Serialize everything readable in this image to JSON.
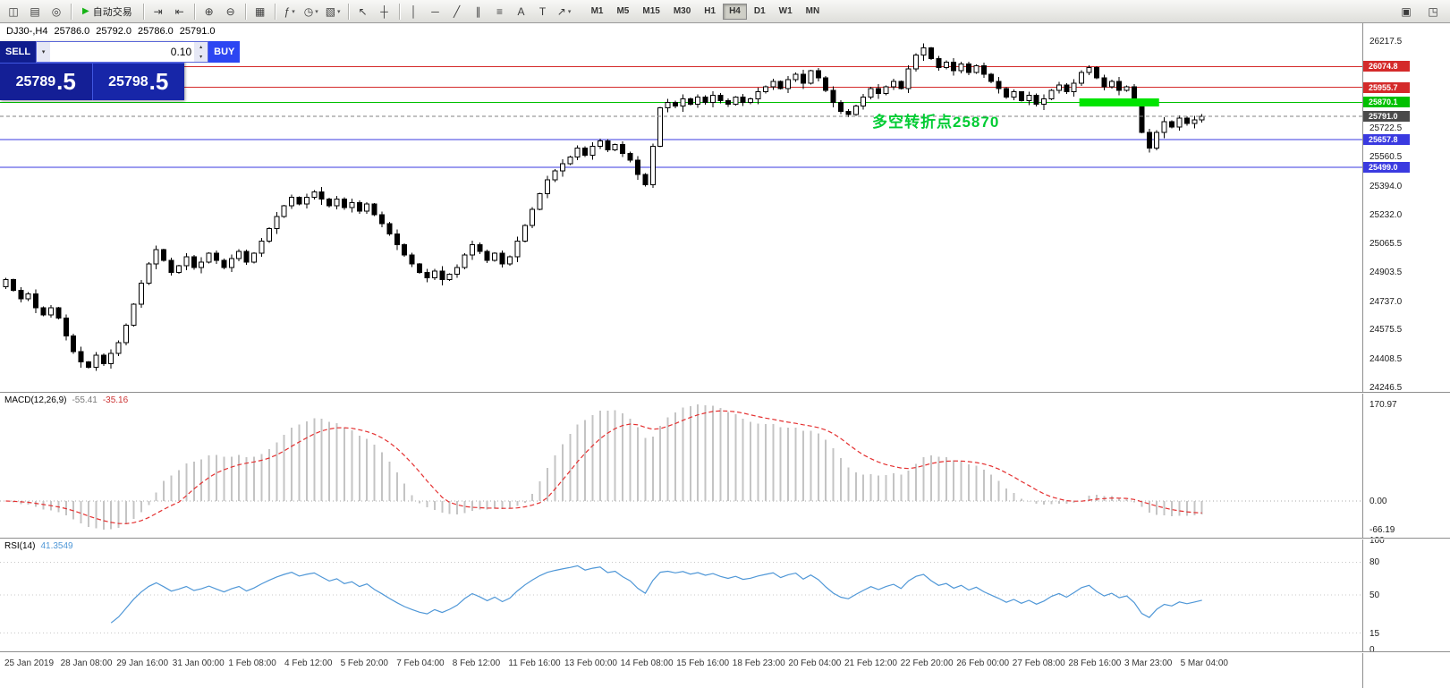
{
  "toolbar": {
    "groups": [
      {
        "items": [
          {
            "name": "new-chart-icon",
            "glyph": "◫"
          },
          {
            "name": "profiles-icon",
            "glyph": "▤"
          },
          {
            "name": "navigator-icon",
            "glyph": "◎"
          }
        ]
      },
      {
        "items": [
          {
            "name": "autotrading-button",
            "glyph": "▶",
            "label": "自动交易"
          }
        ]
      },
      {
        "items": [
          {
            "name": "auto-scroll-icon",
            "glyph": "⇥"
          },
          {
            "name": "chart-shift-icon",
            "glyph": "⇤"
          }
        ]
      },
      {
        "items": [
          {
            "name": "zoom-in-icon",
            "glyph": "⊕"
          },
          {
            "name": "zoom-out-icon",
            "glyph": "⊖"
          }
        ]
      },
      {
        "items": [
          {
            "name": "tile-windows-icon",
            "glyph": "▦"
          }
        ]
      },
      {
        "items": [
          {
            "name": "indicators-icon",
            "glyph": "ƒ",
            "dropdown": true
          },
          {
            "name": "periods-icon",
            "glyph": "◷",
            "dropdown": true
          },
          {
            "name": "templates-icon",
            "glyph": "▧",
            "dropdown": true
          }
        ]
      },
      {
        "items": [
          {
            "name": "cursor-icon",
            "glyph": "↖"
          },
          {
            "name": "crosshair-icon",
            "glyph": "┼"
          }
        ]
      },
      {
        "items": [
          {
            "name": "vertical-line-icon",
            "glyph": "│"
          },
          {
            "name": "horizontal-line-icon",
            "glyph": "─"
          },
          {
            "name": "trendline-icon",
            "glyph": "╱"
          },
          {
            "name": "equidistant-channel-icon",
            "glyph": "∥"
          },
          {
            "name": "fibonacci-icon",
            "glyph": "≡"
          },
          {
            "name": "text-tool-icon",
            "glyph": "A"
          },
          {
            "name": "label-tool-icon",
            "glyph": "T"
          },
          {
            "name": "arrow-tools-icon",
            "glyph": "↗",
            "dropdown": true
          }
        ]
      }
    ],
    "timeframes": [
      "M1",
      "M5",
      "M15",
      "M30",
      "H1",
      "H4",
      "D1",
      "W1",
      "MN"
    ],
    "active_timeframe": "H4",
    "right_icons": [
      {
        "name": "panel-toggle-icon",
        "glyph": "▣"
      },
      {
        "name": "window-layout-icon",
        "glyph": "◳"
      }
    ]
  },
  "chart_header": {
    "symbol": "DJ30-,H4",
    "open": "25786.0",
    "high": "25792.0",
    "low": "25786.0",
    "close": "25791.0"
  },
  "trade_panel": {
    "sell_label": "SELL",
    "buy_label": "BUY",
    "volume": "0.10",
    "sell_price": "25789.5",
    "buy_price": "25798.5"
  },
  "chart_data": {
    "type": "candlestick",
    "symbol": "DJ30-",
    "timeframe": "H4",
    "price_axis": {
      "min": 24200,
      "max": 26260,
      "ticks": [
        26217.5,
        25722.5,
        25560.5,
        25394.0,
        25232.0,
        25065.5,
        24903.5,
        24737.0,
        24575.5,
        24408.5,
        24246.5
      ]
    },
    "closes": [
      24860,
      24800,
      24750,
      24780,
      24700,
      24660,
      24700,
      24640,
      24540,
      24450,
      24390,
      24360,
      24430,
      24380,
      24440,
      24500,
      24600,
      24720,
      24840,
      24950,
      25030,
      24970,
      24900,
      24940,
      24990,
      24930,
      24960,
      25010,
      24970,
      24930,
      24980,
      25020,
      24960,
      25010,
      25080,
      25150,
      25220,
      25280,
      25330,
      25290,
      25330,
      25360,
      25320,
      25280,
      25320,
      25270,
      25300,
      25250,
      25290,
      25230,
      25180,
      25120,
      25060,
      25000,
      24950,
      24900,
      24870,
      24910,
      24860,
      24890,
      24930,
      25000,
      25060,
      25020,
      24970,
      25010,
      24950,
      24990,
      25080,
      25170,
      25260,
      25350,
      25430,
      25480,
      25520,
      25560,
      25610,
      25570,
      25620,
      25650,
      25600,
      25630,
      25580,
      25540,
      25460,
      25400,
      25620,
      25840,
      25870,
      25850,
      25890,
      25860,
      25900,
      25870,
      25910,
      25880,
      25860,
      25900,
      25870,
      25890,
      25930,
      25960,
      25990,
      25950,
      26000,
      26030,
      25980,
      26050,
      26010,
      25940,
      25870,
      25820,
      25800,
      25850,
      25900,
      25950,
      25920,
      25960,
      25990,
      25950,
      26060,
      26140,
      26180,
      26120,
      26070,
      26100,
      26050,
      26090,
      26040,
      26080,
      26030,
      25990,
      25950,
      25900,
      25930,
      25880,
      25910,
      25860,
      25890,
      25940,
      25970,
      25930,
      25980,
      26040,
      26070,
      26010,
      25960,
      25990,
      25940,
      25960,
      25880,
      25700,
      25610,
      25700,
      25760,
      25730,
      25780,
      25750,
      25770,
      25791
    ],
    "wick_pattern": [
      26,
      14,
      38,
      20,
      55,
      16,
      32,
      10,
      46,
      24,
      60,
      15,
      36,
      22,
      50,
      28
    ],
    "levels": [
      {
        "price": 26074.8,
        "label": "26074.8",
        "color": "#d42a2a"
      },
      {
        "price": 25955.7,
        "label": "25955.7",
        "color": "#d42a2a"
      },
      {
        "price": 25870.1,
        "label": "25870.1",
        "color": "#00c000"
      },
      {
        "price": 25791.0,
        "label": "25791.0",
        "color": "#4a4a4a",
        "current": true
      },
      {
        "price": 25657.8,
        "label": "25657.8",
        "color": "#3a3ae0"
      },
      {
        "price": 25499.0,
        "label": "25499.0",
        "color": "#3a3ae0"
      }
    ],
    "highlight": {
      "price": 25870,
      "from_idx": 143,
      "to_idx": 153,
      "color": "#00e400"
    },
    "annotation": {
      "text": "多空转折点25870",
      "color": "#00cc33"
    },
    "macd": {
      "label": "MACD(12,26,9)",
      "macd_value": "-55.41",
      "signal_value": "-35.16",
      "fast": 12,
      "slow": 26,
      "signal": 9,
      "scale_labels": [
        "170.97",
        "0.00",
        "-66.19"
      ],
      "hist_color": "#c4c4c4",
      "signal_color": "#e43030"
    },
    "rsi": {
      "label": "RSI(14)",
      "period": 14,
      "value": "41.3549",
      "scale_labels": [
        100,
        80,
        50,
        15,
        0
      ],
      "levels": [
        80,
        50,
        15
      ],
      "line_color": "#4f97d7"
    },
    "time_labels": [
      "25 Jan 2019",
      "28 Jan 08:00",
      "29 Jan 16:00",
      "31 Jan 00:00",
      "1 Feb 08:00",
      "4 Feb 12:00",
      "5 Feb 20:00",
      "7 Feb 04:00",
      "8 Feb 12:00",
      "11 Feb 16:00",
      "13 Feb 00:00",
      "14 Feb 08:00",
      "15 Feb 16:00",
      "18 Feb 23:00",
      "20 Feb 04:00",
      "21 Feb 12:00",
      "22 Feb 20:00",
      "26 Feb 00:00",
      "27 Feb 08:00",
      "28 Feb 16:00",
      "3 Mar 23:00",
      "5 Mar 04:00"
    ]
  }
}
